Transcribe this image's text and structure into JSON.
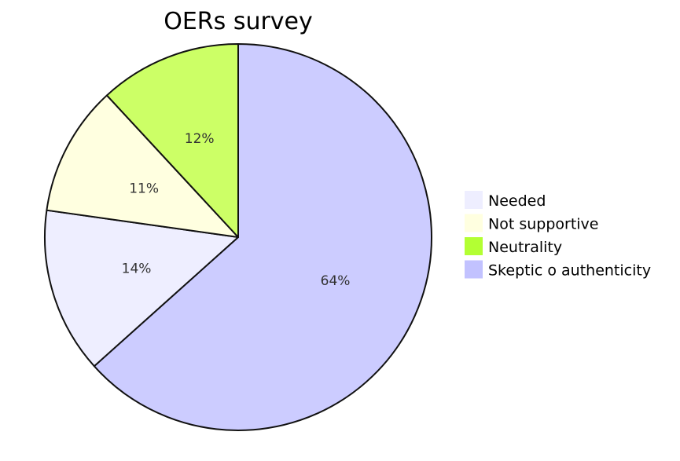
{
  "chart_data": {
    "type": "pie",
    "title": "OERs survey",
    "slices": [
      {
        "name": "Needed",
        "value": 14,
        "label": "14%",
        "color": "#EEEEFF"
      },
      {
        "name": "Not supportive",
        "value": 11,
        "label": "11%",
        "color": "#FFFFE0"
      },
      {
        "name": "Neutrality",
        "value": 12,
        "label": "12%",
        "color": "#CCFF66"
      },
      {
        "name": "Skeptic o authenticity",
        "value": 64,
        "label": "64%",
        "color": "#CCCCFF"
      }
    ],
    "legend_swatches": [
      "#EEEEFF",
      "#FFFFE0",
      "#B3FF33",
      "#C2C2FF"
    ],
    "draw_order": [
      3,
      0,
      1,
      2
    ],
    "legend_position": "right"
  }
}
